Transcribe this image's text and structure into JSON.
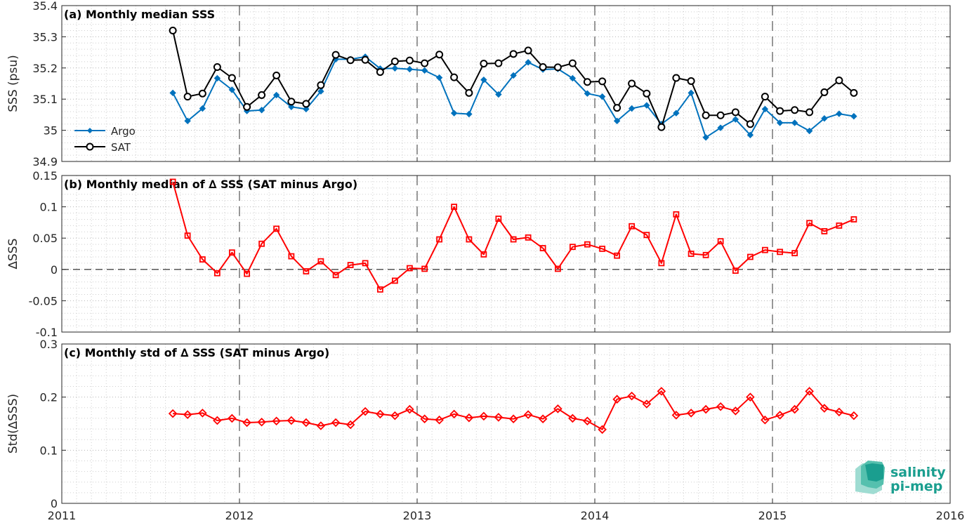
{
  "colors": {
    "argo": "#0072BD",
    "sat": "#000000",
    "delta": "#FF0000",
    "axis": "#262626",
    "grid": "#b0b0b0",
    "logo": "#1a9e8f"
  },
  "x_ticks": [
    "2011",
    "2012",
    "2013",
    "2014",
    "2015",
    "2016"
  ],
  "chart_data": [
    {
      "id": "a",
      "type": "line",
      "title": "(a) Monthly median SSS",
      "ylabel": "SSS (psu)",
      "xlim": [
        2011,
        2016
      ],
      "ylim": [
        34.9,
        35.4
      ],
      "yticks": [
        34.9,
        35,
        35.1,
        35.2,
        35.3,
        35.4
      ],
      "ytick_labels": [
        "34.9",
        "35",
        "35.1",
        "35.2",
        "35.3",
        "35.4"
      ],
      "x_ticks": [
        2011,
        2012,
        2013,
        2014,
        2015,
        2016
      ],
      "grid": true,
      "legend": "middle-left",
      "x": [
        2011.625,
        2011.708,
        2011.792,
        2011.875,
        2011.958,
        2012.042,
        2012.125,
        2012.208,
        2012.292,
        2012.375,
        2012.458,
        2012.542,
        2012.625,
        2012.708,
        2012.792,
        2012.875,
        2012.958,
        2013.042,
        2013.125,
        2013.208,
        2013.292,
        2013.375,
        2013.458,
        2013.542,
        2013.625,
        2013.708,
        2013.792,
        2013.875,
        2013.958,
        2014.042,
        2014.125,
        2014.208,
        2014.292,
        2014.375,
        2014.458,
        2014.542,
        2014.625,
        2014.708,
        2014.792,
        2014.875,
        2014.958,
        2015.042,
        2015.125,
        2015.208,
        2015.292,
        2015.375,
        2015.458
      ],
      "series": [
        {
          "name": "Argo",
          "color": "#0072BD",
          "marker": "diamond",
          "values": [
            35.12,
            35.03,
            35.07,
            35.167,
            35.13,
            35.062,
            35.065,
            35.113,
            35.075,
            35.068,
            35.125,
            35.228,
            35.228,
            35.236,
            35.198,
            35.199,
            35.196,
            35.192,
            35.169,
            35.055,
            35.052,
            35.162,
            35.115,
            35.176,
            35.218,
            35.195,
            35.197,
            35.167,
            35.118,
            35.108,
            35.03,
            35.07,
            35.08,
            35.02,
            35.055,
            35.12,
            34.977,
            35.008,
            35.035,
            34.985,
            35.068,
            35.024,
            35.024,
            34.998,
            35.038,
            35.053,
            35.045
          ]
        },
        {
          "name": "SAT",
          "color": "#000000",
          "marker": "circle",
          "values": [
            35.32,
            35.108,
            35.118,
            35.203,
            35.168,
            35.075,
            35.113,
            35.176,
            35.092,
            35.085,
            35.145,
            35.242,
            35.225,
            35.226,
            35.187,
            35.221,
            35.224,
            35.215,
            35.243,
            35.17,
            35.12,
            35.214,
            35.215,
            35.245,
            35.256,
            35.203,
            35.202,
            35.215,
            35.155,
            35.157,
            35.072,
            35.15,
            35.118,
            35.01,
            35.168,
            35.158,
            35.048,
            35.048,
            35.058,
            35.02,
            35.108,
            35.062,
            35.065,
            35.058,
            35.122,
            35.16,
            35.12
          ]
        }
      ]
    },
    {
      "id": "b",
      "type": "line",
      "title": "(b) Monthly median of ∆ SSS (SAT minus Argo)",
      "ylabel": "∆SSS",
      "xlim": [
        2011,
        2016
      ],
      "ylim": [
        -0.1,
        0.15
      ],
      "yticks": [
        -0.1,
        -0.05,
        0,
        0.05,
        0.1,
        0.15
      ],
      "ytick_labels": [
        "-0.1",
        "-0.05",
        "0",
        "0.05",
        "0.1",
        "0.15"
      ],
      "x_ticks": [
        2011,
        2012,
        2013,
        2014,
        2015,
        2016
      ],
      "grid": true,
      "zero_line": true,
      "x": [
        2011.625,
        2011.708,
        2011.792,
        2011.875,
        2011.958,
        2012.042,
        2012.125,
        2012.208,
        2012.292,
        2012.375,
        2012.458,
        2012.542,
        2012.625,
        2012.708,
        2012.792,
        2012.875,
        2012.958,
        2013.042,
        2013.125,
        2013.208,
        2013.292,
        2013.375,
        2013.458,
        2013.542,
        2013.625,
        2013.708,
        2013.792,
        2013.875,
        2013.958,
        2014.042,
        2014.125,
        2014.208,
        2014.292,
        2014.375,
        2014.458,
        2014.542,
        2014.625,
        2014.708,
        2014.792,
        2014.875,
        2014.958,
        2015.042,
        2015.125,
        2015.208,
        2015.292,
        2015.375,
        2015.458
      ],
      "series": [
        {
          "color": "#FF0000",
          "marker": "square",
          "values": [
            0.14,
            0.054,
            0.016,
            -0.006,
            0.027,
            -0.007,
            0.041,
            0.065,
            0.021,
            -0.003,
            0.013,
            -0.009,
            0.007,
            0.01,
            -0.032,
            -0.018,
            0.002,
            0.001,
            0.048,
            0.1,
            0.048,
            0.024,
            0.081,
            0.048,
            0.051,
            0.034,
            0.001,
            0.036,
            0.04,
            0.033,
            0.022,
            0.069,
            0.055,
            0.01,
            0.088,
            0.025,
            0.023,
            0.045,
            -0.002,
            0.02,
            0.031,
            0.028,
            0.026,
            0.074,
            0.061,
            0.07,
            0.08
          ]
        }
      ]
    },
    {
      "id": "c",
      "type": "line",
      "title": "(c) Monthly std of ∆ SSS (SAT minus Argo)",
      "ylabel": "Std(∆SSS)",
      "xlim": [
        2011,
        2016
      ],
      "ylim": [
        0,
        0.3
      ],
      "yticks": [
        0,
        0.1,
        0.2,
        0.3
      ],
      "ytick_labels": [
        "0",
        "0.1",
        "0.2",
        "0.3"
      ],
      "x_ticks": [
        2011,
        2012,
        2013,
        2014,
        2015,
        2016
      ],
      "x_tick_labels": [
        "2011",
        "2012",
        "2013",
        "2014",
        "2015",
        "2016"
      ],
      "grid": true,
      "x": [
        2011.625,
        2011.708,
        2011.792,
        2011.875,
        2011.958,
        2012.042,
        2012.125,
        2012.208,
        2012.292,
        2012.375,
        2012.458,
        2012.542,
        2012.625,
        2012.708,
        2012.792,
        2012.875,
        2012.958,
        2013.042,
        2013.125,
        2013.208,
        2013.292,
        2013.375,
        2013.458,
        2013.542,
        2013.625,
        2013.708,
        2013.792,
        2013.875,
        2013.958,
        2014.042,
        2014.125,
        2014.208,
        2014.292,
        2014.375,
        2014.458,
        2014.542,
        2014.625,
        2014.708,
        2014.792,
        2014.875,
        2014.958,
        2015.042,
        2015.125,
        2015.208,
        2015.292,
        2015.375,
        2015.458
      ],
      "series": [
        {
          "color": "#FF0000",
          "marker": "diamond",
          "values": [
            0.169,
            0.167,
            0.17,
            0.156,
            0.16,
            0.152,
            0.153,
            0.155,
            0.156,
            0.152,
            0.146,
            0.152,
            0.148,
            0.173,
            0.168,
            0.165,
            0.177,
            0.159,
            0.157,
            0.168,
            0.161,
            0.164,
            0.162,
            0.159,
            0.167,
            0.159,
            0.178,
            0.16,
            0.155,
            0.139,
            0.196,
            0.202,
            0.187,
            0.211,
            0.166,
            0.17,
            0.177,
            0.182,
            0.174,
            0.2,
            0.157,
            0.166,
            0.177,
            0.211,
            0.179,
            0.172,
            0.165
          ]
        }
      ]
    }
  ],
  "logo": {
    "line1": "salinity",
    "line2": "pi-mep"
  }
}
